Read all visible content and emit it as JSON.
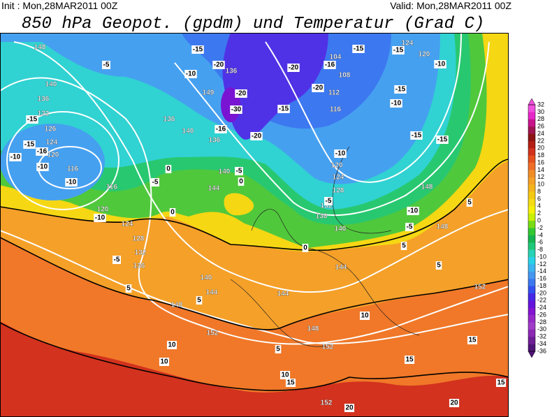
{
  "header": {
    "init": "Init : Mon,28MAR2011 00Z",
    "valid": "Valid: Mon,28MAR2011 00Z",
    "title": "850 hPa Geopot. (gpdm) und Temperatur (Grad C)"
  },
  "colorbar": {
    "labels": [
      32,
      30,
      28,
      26,
      24,
      22,
      20,
      18,
      16,
      14,
      12,
      10,
      8,
      6,
      4,
      2,
      0,
      -2,
      -4,
      -6,
      -8,
      -10,
      -12,
      -14,
      -16,
      -18,
      -20,
      -22,
      -24,
      -26,
      -28,
      -30,
      -32,
      -34,
      -36
    ],
    "colors": [
      "#f050dc",
      "#e628c8",
      "#c8148c",
      "#a01450",
      "#8c1414",
      "#b41e14",
      "#d2321e",
      "#e6501e",
      "#f06e28",
      "#f08c28",
      "#f5a028",
      "#f5b41e",
      "#f5c814",
      "#f5dc14",
      "#f5f00a",
      "#c8f000",
      "#78dc14",
      "#32c832",
      "#14b450",
      "#1ec878",
      "#28d2b4",
      "#28d2e6",
      "#3cb4f0",
      "#4696f0",
      "#3c78f0",
      "#3250f0",
      "#4628e6",
      "#6414dc",
      "#8214d2",
      "#9628c8",
      "#a03cc8",
      "#8c28b4",
      "#6e1e96",
      "#501478"
    ]
  },
  "map": {
    "geopotential_labels": [
      148,
      140,
      136,
      132,
      126,
      124,
      120,
      116,
      116,
      120,
      124,
      128,
      132,
      136,
      140,
      144,
      148,
      152,
      152,
      144,
      148,
      144,
      140,
      136,
      132,
      128,
      124,
      120,
      116,
      112,
      108,
      104,
      120,
      124,
      148,
      152,
      136,
      140,
      136,
      140,
      144,
      149,
      136,
      152,
      148
    ],
    "temperature_labels": [
      -5,
      -15,
      -15,
      -10,
      -16,
      -10,
      -10,
      -10,
      -5,
      0,
      -5,
      0,
      5,
      5,
      0,
      -5,
      -20,
      -16,
      -15,
      -20,
      -10,
      -20,
      -30,
      -15,
      -20,
      -20,
      -16,
      -15,
      -15,
      -10,
      -15,
      -10,
      -15,
      -15,
      -10,
      -5,
      -10,
      -5,
      0,
      5,
      5,
      5,
      10,
      5,
      10,
      10,
      10,
      15,
      15,
      15,
      15,
      20,
      20
    ]
  }
}
